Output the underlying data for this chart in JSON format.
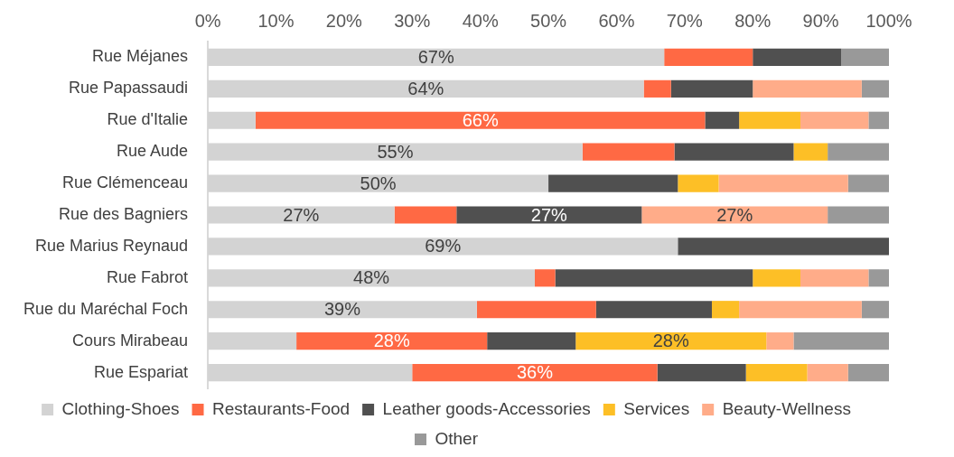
{
  "chart_data": {
    "type": "bar",
    "orientation": "horizontal",
    "stacked": true,
    "grid": false,
    "legend": "bottom",
    "categories": [
      "Rue Méjanes",
      "Rue Papassaudi",
      "Rue d'Italie",
      "Rue Aude",
      "Rue Clémenceau",
      "Rue des Bagniers",
      "Rue Marius Reynaud",
      "Rue Fabrot",
      "Rue du Maréchal Foch",
      "Cours Mirabeau",
      "Rue Espariat"
    ],
    "xlim": [
      0,
      100
    ],
    "xticks": [
      {
        "value": 0,
        "label": "0%"
      },
      {
        "value": 10,
        "label": "10%"
      },
      {
        "value": 20,
        "label": "20%"
      },
      {
        "value": 30,
        "label": "30%"
      },
      {
        "value": 40,
        "label": "40%"
      },
      {
        "value": 50,
        "label": "50%"
      },
      {
        "value": 60,
        "label": "60%"
      },
      {
        "value": 70,
        "label": "70%"
      },
      {
        "value": 80,
        "label": "80%"
      },
      {
        "value": 90,
        "label": "90%"
      },
      {
        "value": 100,
        "label": "100%"
      }
    ],
    "series": [
      {
        "name": "Clothing-Shoes",
        "color": "#d3d3d3",
        "values": [
          67,
          64,
          7,
          55,
          50,
          27.4,
          69,
          48,
          39.5,
          13,
          30
        ],
        "value_labels": [
          "67%",
          "64%",
          null,
          "55%",
          "50%",
          "27%",
          "69%",
          "48%",
          "39%",
          null,
          null
        ]
      },
      {
        "name": "Restaurants-Food",
        "color": "#ff6944",
        "values": [
          13,
          4,
          66,
          13.5,
          0,
          9.1,
          0,
          3,
          17.5,
          28,
          36
        ],
        "value_labels": [
          null,
          null,
          "66%",
          null,
          null,
          null,
          null,
          null,
          null,
          "28%",
          "36%"
        ]
      },
      {
        "name": "Leather goods-Accessories",
        "color": "#505050",
        "values": [
          13,
          12,
          5,
          17.5,
          19,
          27.2,
          31,
          29,
          17,
          13,
          13
        ],
        "value_labels": [
          null,
          null,
          null,
          null,
          null,
          "27%",
          null,
          null,
          null,
          null,
          null
        ]
      },
      {
        "name": "Services",
        "color": "#fdbf26",
        "values": [
          0,
          0,
          9,
          5,
          6,
          0,
          0,
          7,
          4,
          28,
          9
        ],
        "value_labels": [
          null,
          null,
          null,
          null,
          null,
          null,
          null,
          null,
          null,
          "28%",
          null
        ]
      },
      {
        "name": "Beauty-Wellness",
        "color": "#ffac89",
        "values": [
          0,
          16,
          10,
          0,
          19,
          27.3,
          0,
          10,
          18,
          4,
          6
        ],
        "value_labels": [
          null,
          null,
          null,
          null,
          null,
          "27%",
          null,
          null,
          null,
          null,
          null
        ]
      },
      {
        "name": "Other",
        "color": "#999999",
        "values": [
          7,
          4,
          3,
          9,
          6,
          9,
          0,
          3,
          4,
          14,
          6
        ],
        "value_labels": [
          null,
          null,
          null,
          null,
          null,
          null,
          null,
          null,
          null,
          null,
          null
        ]
      }
    ]
  }
}
